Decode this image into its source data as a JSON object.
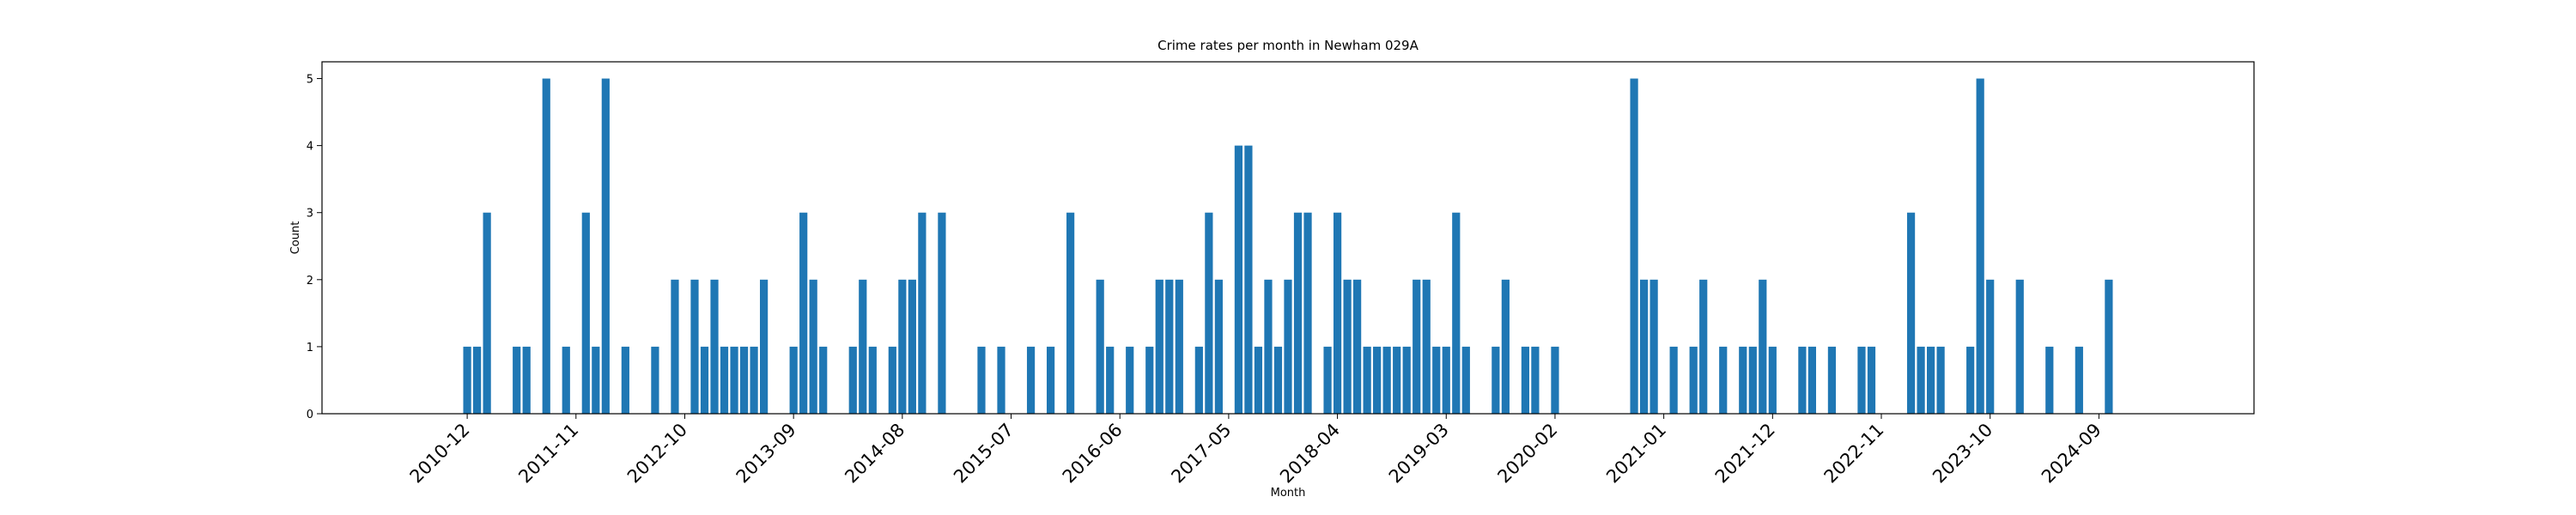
{
  "chart_data": {
    "type": "bar",
    "title": "Crime rates per month in Newham 029A",
    "xlabel": "Month",
    "ylabel": "Count",
    "ylim": [
      0,
      5.25
    ],
    "yticks": [
      0,
      1,
      2,
      3,
      4,
      5
    ],
    "xtick_labels": [
      "2010-12",
      "2011-11",
      "2012-10",
      "2013-09",
      "2014-08",
      "2015-07",
      "2016-06",
      "2017-05",
      "2018-04",
      "2019-03",
      "2020-02",
      "2021-01",
      "2021-12",
      "2022-11",
      "2023-10",
      "2024-09"
    ],
    "grid": false,
    "bar_color": "#1f77b4",
    "categories": [
      "2010-12",
      "2011-01",
      "2011-02",
      "2011-05",
      "2011-06",
      "2011-08",
      "2011-10",
      "2011-12",
      "2012-01",
      "2012-02",
      "2012-04",
      "2012-07",
      "2012-09",
      "2012-11",
      "2012-12",
      "2013-01",
      "2013-02",
      "2013-03",
      "2013-04",
      "2013-05",
      "2013-06",
      "2013-09",
      "2013-10",
      "2013-11",
      "2013-12",
      "2014-03",
      "2014-04",
      "2014-05",
      "2014-07",
      "2014-08",
      "2014-09",
      "2014-10",
      "2014-12",
      "2015-04",
      "2015-06",
      "2015-09",
      "2015-11",
      "2016-01",
      "2016-04",
      "2016-05",
      "2016-07",
      "2016-09",
      "2016-10",
      "2016-11",
      "2016-12",
      "2017-02",
      "2017-03",
      "2017-04",
      "2017-06",
      "2017-07",
      "2017-08",
      "2017-09",
      "2017-10",
      "2017-11",
      "2017-12",
      "2018-01",
      "2018-03",
      "2018-04",
      "2018-05",
      "2018-06",
      "2018-07",
      "2018-08",
      "2018-09",
      "2018-10",
      "2018-11",
      "2018-12",
      "2019-01",
      "2019-02",
      "2019-03",
      "2019-04",
      "2019-05",
      "2019-08",
      "2019-09",
      "2019-11",
      "2019-12",
      "2020-02",
      "2020-10",
      "2020-11",
      "2020-12",
      "2021-02",
      "2021-04",
      "2021-05",
      "2021-07",
      "2021-09",
      "2021-10",
      "2021-11",
      "2021-12",
      "2022-03",
      "2022-04",
      "2022-06",
      "2022-09",
      "2022-10",
      "2023-02",
      "2023-03",
      "2023-04",
      "2023-05",
      "2023-08",
      "2023-09",
      "2023-10",
      "2024-01",
      "2024-04",
      "2024-07",
      "2024-10"
    ],
    "values": [
      1,
      1,
      3,
      1,
      1,
      5,
      1,
      3,
      1,
      5,
      1,
      1,
      2,
      2,
      1,
      2,
      1,
      1,
      1,
      1,
      2,
      1,
      3,
      2,
      1,
      1,
      2,
      1,
      1,
      2,
      2,
      3,
      3,
      1,
      1,
      1,
      1,
      3,
      2,
      1,
      1,
      1,
      2,
      2,
      2,
      1,
      3,
      2,
      4,
      4,
      1,
      2,
      1,
      2,
      3,
      3,
      1,
      3,
      2,
      2,
      1,
      1,
      1,
      1,
      1,
      2,
      2,
      1,
      1,
      3,
      1,
      1,
      2,
      1,
      1,
      1,
      5,
      2,
      2,
      1,
      1,
      2,
      1,
      1,
      1,
      2,
      1,
      1,
      1,
      1,
      1,
      1,
      3,
      1,
      1,
      1,
      1,
      5,
      2,
      2,
      1,
      1,
      2
    ]
  }
}
